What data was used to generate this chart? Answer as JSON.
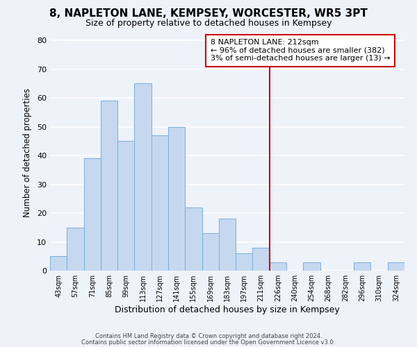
{
  "title": "8, NAPLETON LANE, KEMPSEY, WORCESTER, WR5 3PT",
  "subtitle": "Size of property relative to detached houses in Kempsey",
  "xlabel": "Distribution of detached houses by size in Kempsey",
  "ylabel": "Number of detached properties",
  "bar_labels": [
    "43sqm",
    "57sqm",
    "71sqm",
    "85sqm",
    "99sqm",
    "113sqm",
    "127sqm",
    "141sqm",
    "155sqm",
    "169sqm",
    "183sqm",
    "197sqm",
    "211sqm",
    "226sqm",
    "240sqm",
    "254sqm",
    "268sqm",
    "282sqm",
    "296sqm",
    "310sqm",
    "324sqm"
  ],
  "bar_values": [
    5,
    15,
    39,
    59,
    45,
    65,
    47,
    50,
    22,
    13,
    18,
    6,
    8,
    3,
    0,
    3,
    0,
    0,
    3,
    0,
    3
  ],
  "bar_color": "#c5d8f0",
  "bar_edgecolor": "#7aadd4",
  "vline_color": "#cc0000",
  "annotation_title": "8 NAPLETON LANE: 212sqm",
  "annotation_line1": "← 96% of detached houses are smaller (382)",
  "annotation_line2": "3% of semi-detached houses are larger (13) →",
  "annotation_box_edgecolor": "#cc0000",
  "ylim": [
    0,
    82
  ],
  "yticks": [
    0,
    10,
    20,
    30,
    40,
    50,
    60,
    70,
    80
  ],
  "footer1": "Contains HM Land Registry data © Crown copyright and database right 2024.",
  "footer2": "Contains public sector information licensed under the Open Government Licence v3.0.",
  "bg_color": "#eef2f9",
  "grid_color": "#ffffff"
}
